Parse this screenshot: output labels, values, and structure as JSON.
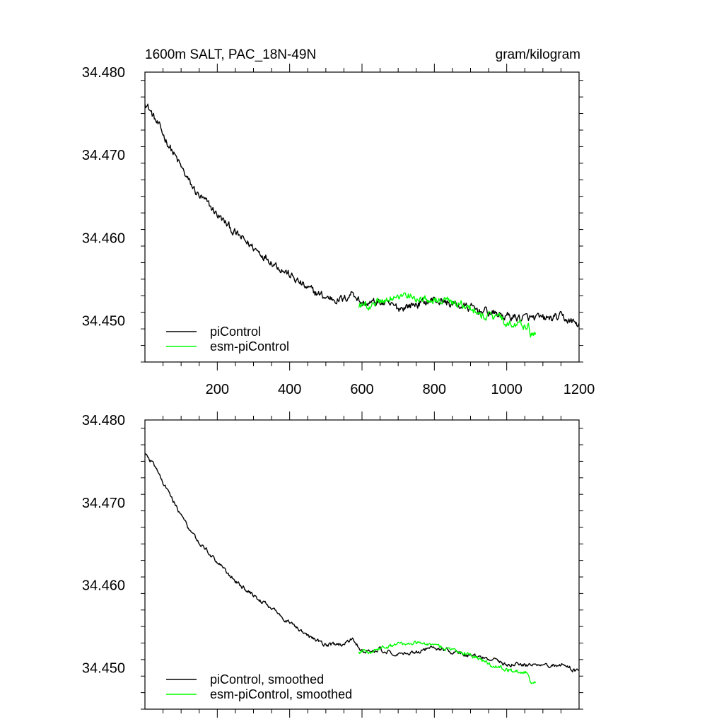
{
  "chart_data": [
    {
      "type": "line",
      "title_left": "1600m SALT, PAC_18N-49N",
      "title_right": "gram/kilogram",
      "xlabel": "",
      "ylabel": "",
      "xlim": [
        0,
        1200
      ],
      "ylim": [
        34.445,
        34.48
      ],
      "grid": false,
      "legend_position": "bottom-left",
      "xticks": [
        {
          "value": 200,
          "label": "200"
        },
        {
          "value": 400,
          "label": "400"
        },
        {
          "value": 600,
          "label": "600"
        },
        {
          "value": 800,
          "label": "800"
        },
        {
          "value": 1000,
          "label": "1000"
        },
        {
          "value": 1200,
          "label": "1200"
        }
      ],
      "yticks": [
        {
          "value": 34.48,
          "label": "34.480"
        },
        {
          "value": 34.47,
          "label": "34.470"
        },
        {
          "value": 34.46,
          "label": "34.460"
        },
        {
          "value": 34.45,
          "label": "34.450"
        }
      ],
      "series": [
        {
          "name": "piControl",
          "color": "#000000",
          "noise": 0.0007,
          "x": [
            0,
            25,
            50,
            75,
            100,
            125,
            150,
            175,
            200,
            250,
            300,
            350,
            400,
            450,
            500,
            550,
            575,
            600,
            650,
            700,
            750,
            800,
            850,
            900,
            950,
            1000,
            1050,
            1100,
            1150,
            1200
          ],
          "y": [
            34.4765,
            34.4745,
            34.4725,
            34.4705,
            34.4685,
            34.4665,
            34.465,
            34.464,
            34.4628,
            34.4605,
            34.4588,
            34.4572,
            34.4555,
            34.4538,
            34.4528,
            34.4525,
            34.4535,
            34.452,
            34.4522,
            34.4515,
            34.452,
            34.4525,
            34.452,
            34.4515,
            34.451,
            34.4505,
            34.4503,
            34.4502,
            34.4504,
            34.4495
          ]
        },
        {
          "name": "esm-piControl",
          "color": "#00ff00",
          "noise": 0.0007,
          "x": [
            590,
            620,
            650,
            700,
            750,
            800,
            850,
            900,
            950,
            1000,
            1040,
            1060,
            1065,
            1080
          ],
          "y": [
            34.452,
            34.4518,
            34.4525,
            34.4528,
            34.453,
            34.4528,
            34.4522,
            34.4515,
            34.4505,
            34.4498,
            34.4495,
            34.4494,
            34.448,
            34.4483
          ]
        }
      ]
    },
    {
      "type": "line",
      "xlabel": "",
      "ylabel": "",
      "xlim": [
        0,
        1200
      ],
      "ylim": [
        34.445,
        34.48
      ],
      "grid": false,
      "legend_position": "bottom-left",
      "yticks": [
        {
          "value": 34.48,
          "label": "34.480"
        },
        {
          "value": 34.47,
          "label": "34.470"
        },
        {
          "value": 34.46,
          "label": "34.460"
        },
        {
          "value": 34.45,
          "label": "34.450"
        }
      ],
      "series": [
        {
          "name": "piControl, smoothed",
          "color": "#000000",
          "noise": 0.00035,
          "x": [
            0,
            25,
            50,
            75,
            100,
            125,
            150,
            175,
            200,
            250,
            300,
            350,
            400,
            450,
            500,
            550,
            575,
            600,
            650,
            700,
            750,
            800,
            850,
            900,
            950,
            1000,
            1050,
            1100,
            1150,
            1200
          ],
          "y": [
            34.4762,
            34.4745,
            34.4725,
            34.4705,
            34.4685,
            34.4665,
            34.465,
            34.464,
            34.4628,
            34.4605,
            34.4588,
            34.4572,
            34.4555,
            34.4538,
            34.4528,
            34.4528,
            34.4535,
            34.452,
            34.4522,
            34.4515,
            34.452,
            34.4525,
            34.452,
            34.4515,
            34.451,
            34.4505,
            34.4503,
            34.4502,
            34.4504,
            34.4495
          ]
        },
        {
          "name": "esm-piControl, smoothed",
          "color": "#00ff00",
          "noise": 0.00035,
          "x": [
            590,
            620,
            650,
            700,
            750,
            800,
            850,
            900,
            950,
            1000,
            1040,
            1060,
            1065,
            1080
          ],
          "y": [
            34.452,
            34.4518,
            34.4525,
            34.4528,
            34.453,
            34.4528,
            34.4522,
            34.4515,
            34.4505,
            34.4498,
            34.4495,
            34.4494,
            34.448,
            34.4483
          ]
        }
      ]
    }
  ]
}
